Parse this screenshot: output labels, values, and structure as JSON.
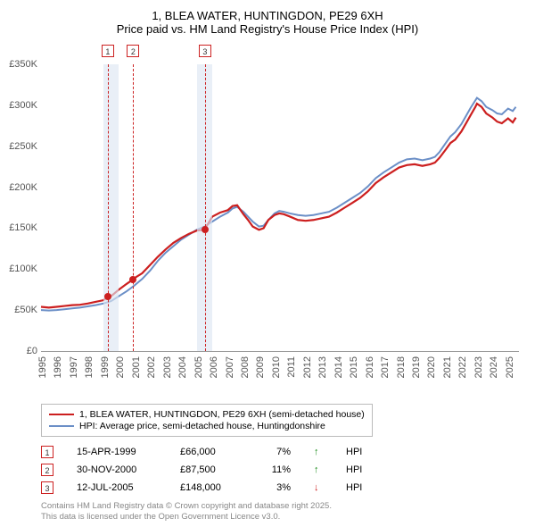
{
  "title_line1": "1, BLEA WATER, HUNTINGDON, PE29 6XH",
  "title_line2": "Price paid vs. HM Land Registry's House Price Index (HPI)",
  "chart": {
    "type": "line",
    "x_min": 1995,
    "x_max": 2025.7,
    "y_min": 0,
    "y_max": 350000,
    "y_ticks": [
      0,
      50000,
      100000,
      150000,
      200000,
      250000,
      300000,
      350000
    ],
    "y_tick_labels": [
      "£0",
      "£50K",
      "£100K",
      "£150K",
      "£200K",
      "£250K",
      "£300K",
      "£350K"
    ],
    "x_ticks": [
      1995,
      1996,
      1997,
      1998,
      1999,
      2000,
      2001,
      2002,
      2003,
      2004,
      2005,
      2006,
      2007,
      2008,
      2009,
      2010,
      2011,
      2012,
      2013,
      2014,
      2015,
      2016,
      2017,
      2018,
      2019,
      2020,
      2021,
      2022,
      2023,
      2024,
      2025
    ],
    "shade_bands": [
      {
        "from": 1999,
        "to": 2000
      },
      {
        "from": 2005,
        "to": 2006
      }
    ],
    "series": [
      {
        "name": "property",
        "color": "#cc1f1f",
        "width": 2.2,
        "points": [
          [
            1995,
            54000
          ],
          [
            1995.5,
            53000
          ],
          [
            1996,
            54000
          ],
          [
            1996.5,
            55000
          ],
          [
            1997,
            56000
          ],
          [
            1997.5,
            56500
          ],
          [
            1998,
            58000
          ],
          [
            1998.5,
            60000
          ],
          [
            1999,
            62000
          ],
          [
            1999.29,
            66000
          ],
          [
            1999.5,
            67000
          ],
          [
            2000,
            75000
          ],
          [
            2000.5,
            82000
          ],
          [
            2000.92,
            87500
          ],
          [
            2001,
            89000
          ],
          [
            2001.5,
            95000
          ],
          [
            2002,
            105000
          ],
          [
            2002.5,
            115000
          ],
          [
            2003,
            124000
          ],
          [
            2003.5,
            132000
          ],
          [
            2004,
            138000
          ],
          [
            2004.5,
            143000
          ],
          [
            2005,
            147000
          ],
          [
            2005.5,
            148000
          ],
          [
            2006,
            164000
          ],
          [
            2006.5,
            169000
          ],
          [
            2007,
            172000
          ],
          [
            2007.3,
            177000
          ],
          [
            2007.6,
            178000
          ],
          [
            2008,
            167000
          ],
          [
            2008.3,
            160000
          ],
          [
            2008.6,
            152000
          ],
          [
            2009,
            148000
          ],
          [
            2009.3,
            150000
          ],
          [
            2009.6,
            160000
          ],
          [
            2010,
            166000
          ],
          [
            2010.3,
            168000
          ],
          [
            2010.6,
            167000
          ],
          [
            2011,
            164000
          ],
          [
            2011.5,
            160000
          ],
          [
            2012,
            159000
          ],
          [
            2012.5,
            160000
          ],
          [
            2013,
            162000
          ],
          [
            2013.5,
            164000
          ],
          [
            2014,
            169000
          ],
          [
            2014.5,
            175000
          ],
          [
            2015,
            181000
          ],
          [
            2015.5,
            187000
          ],
          [
            2016,
            195000
          ],
          [
            2016.5,
            205000
          ],
          [
            2017,
            212000
          ],
          [
            2017.5,
            218000
          ],
          [
            2018,
            224000
          ],
          [
            2018.5,
            227000
          ],
          [
            2019,
            228000
          ],
          [
            2019.5,
            226000
          ],
          [
            2020,
            228000
          ],
          [
            2020.3,
            230000
          ],
          [
            2020.6,
            236000
          ],
          [
            2021,
            246000
          ],
          [
            2021.3,
            254000
          ],
          [
            2021.6,
            258000
          ],
          [
            2022,
            268000
          ],
          [
            2022.3,
            278000
          ],
          [
            2022.6,
            288000
          ],
          [
            2022.9,
            298000
          ],
          [
            2023,
            302000
          ],
          [
            2023.3,
            298000
          ],
          [
            2023.6,
            290000
          ],
          [
            2024,
            285000
          ],
          [
            2024.3,
            280000
          ],
          [
            2024.6,
            278000
          ],
          [
            2025,
            284000
          ],
          [
            2025.3,
            279000
          ],
          [
            2025.5,
            285000
          ]
        ]
      },
      {
        "name": "hpi",
        "color": "#6b8fc7",
        "width": 2,
        "points": [
          [
            1995,
            50000
          ],
          [
            1995.5,
            49500
          ],
          [
            1996,
            50000
          ],
          [
            1996.5,
            51000
          ],
          [
            1997,
            52000
          ],
          [
            1997.5,
            53000
          ],
          [
            1998,
            54500
          ],
          [
            1998.5,
            56000
          ],
          [
            1999,
            58000
          ],
          [
            1999.5,
            61000
          ],
          [
            2000,
            67000
          ],
          [
            2000.5,
            73000
          ],
          [
            2001,
            80000
          ],
          [
            2001.5,
            88000
          ],
          [
            2002,
            98000
          ],
          [
            2002.5,
            110000
          ],
          [
            2003,
            120000
          ],
          [
            2003.5,
            128000
          ],
          [
            2004,
            136000
          ],
          [
            2004.5,
            142000
          ],
          [
            2005,
            148000
          ],
          [
            2005.5,
            152000
          ],
          [
            2006,
            158000
          ],
          [
            2006.5,
            164000
          ],
          [
            2007,
            169000
          ],
          [
            2007.3,
            174000
          ],
          [
            2007.6,
            176000
          ],
          [
            2008,
            170000
          ],
          [
            2008.3,
            164000
          ],
          [
            2008.6,
            158000
          ],
          [
            2009,
            152000
          ],
          [
            2009.3,
            153000
          ],
          [
            2009.6,
            160000
          ],
          [
            2010,
            168000
          ],
          [
            2010.3,
            171000
          ],
          [
            2010.6,
            170000
          ],
          [
            2011,
            168000
          ],
          [
            2011.5,
            166000
          ],
          [
            2012,
            165000
          ],
          [
            2012.5,
            166000
          ],
          [
            2013,
            168000
          ],
          [
            2013.5,
            170000
          ],
          [
            2014,
            175000
          ],
          [
            2014.5,
            181000
          ],
          [
            2015,
            187000
          ],
          [
            2015.5,
            193000
          ],
          [
            2016,
            201000
          ],
          [
            2016.5,
            211000
          ],
          [
            2017,
            218000
          ],
          [
            2017.5,
            224000
          ],
          [
            2018,
            230000
          ],
          [
            2018.5,
            234000
          ],
          [
            2019,
            235000
          ],
          [
            2019.5,
            233000
          ],
          [
            2020,
            235000
          ],
          [
            2020.3,
            237000
          ],
          [
            2020.6,
            243000
          ],
          [
            2021,
            254000
          ],
          [
            2021.3,
            262000
          ],
          [
            2021.6,
            267000
          ],
          [
            2022,
            277000
          ],
          [
            2022.3,
            287000
          ],
          [
            2022.6,
            297000
          ],
          [
            2022.9,
            306000
          ],
          [
            2023,
            309000
          ],
          [
            2023.3,
            305000
          ],
          [
            2023.6,
            298000
          ],
          [
            2024,
            294000
          ],
          [
            2024.3,
            290000
          ],
          [
            2024.6,
            289000
          ],
          [
            2025,
            296000
          ],
          [
            2025.3,
            293000
          ],
          [
            2025.5,
            298000
          ]
        ]
      }
    ],
    "markers": [
      {
        "num": "1",
        "x": 1999.29,
        "y": 66000
      },
      {
        "num": "2",
        "x": 2000.92,
        "y": 87500
      },
      {
        "num": "3",
        "x": 2005.53,
        "y": 148000
      }
    ]
  },
  "legend": {
    "items": [
      {
        "label": "1, BLEA WATER, HUNTINGDON, PE29 6XH (semi-detached house)",
        "color": "#cc1f1f"
      },
      {
        "label": "HPI: Average price, semi-detached house, Huntingdonshire",
        "color": "#6b8fc7"
      }
    ]
  },
  "transactions": [
    {
      "num": "1",
      "date": "15-APR-1999",
      "price": "£66,000",
      "pct": "7%",
      "arrow": "↑",
      "arrow_color": "#1a8a1a",
      "tag": "HPI"
    },
    {
      "num": "2",
      "date": "30-NOV-2000",
      "price": "£87,500",
      "pct": "11%",
      "arrow": "↑",
      "arrow_color": "#1a8a1a",
      "tag": "HPI"
    },
    {
      "num": "3",
      "date": "12-JUL-2005",
      "price": "£148,000",
      "pct": "3%",
      "arrow": "↓",
      "arrow_color": "#cc1f1f",
      "tag": "HPI"
    }
  ],
  "footer_line1": "Contains HM Land Registry data © Crown copyright and database right 2025.",
  "footer_line2": "This data is licensed under the Open Government Licence v3.0."
}
